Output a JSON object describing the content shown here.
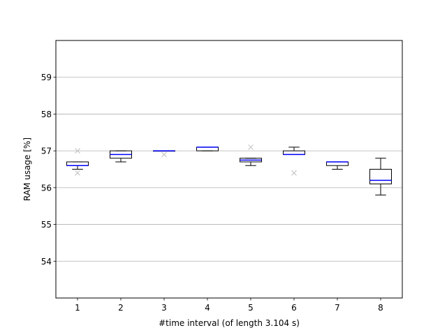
{
  "chart_data": {
    "type": "box",
    "xlabel": "#time interval (of length 3.104 s)",
    "ylabel": "RAM usage [%]",
    "xlim": [
      0.5,
      8.5
    ],
    "ylim": [
      53.0,
      60.0
    ],
    "yticks": [
      54,
      55,
      56,
      57,
      58,
      59
    ],
    "grid": "y-major",
    "median_color": "#0000ff",
    "outlier_color": "#c8c8c8",
    "categories": [
      "1",
      "2",
      "3",
      "4",
      "5",
      "6",
      "7",
      "8"
    ],
    "boxes": [
      {
        "x": 1,
        "whislo": 56.5,
        "q1": 56.6,
        "med": 56.6,
        "q3": 56.7,
        "whishi": 56.7,
        "fliers": [
          57.0,
          56.4
        ]
      },
      {
        "x": 2,
        "whislo": 56.7,
        "q1": 56.8,
        "med": 56.9,
        "q3": 57.0,
        "whishi": 57.0,
        "fliers": []
      },
      {
        "x": 3,
        "whislo": 57.0,
        "q1": 57.0,
        "med": 57.0,
        "q3": 57.0,
        "whishi": 57.0,
        "fliers": [
          56.9
        ]
      },
      {
        "x": 4,
        "whislo": 57.0,
        "q1": 57.0,
        "med": 57.1,
        "q3": 57.1,
        "whishi": 57.1,
        "fliers": []
      },
      {
        "x": 5,
        "whislo": 56.6,
        "q1": 56.7,
        "med": 56.75,
        "q3": 56.8,
        "whishi": 56.8,
        "fliers": [
          57.1
        ]
      },
      {
        "x": 6,
        "whislo": 56.9,
        "q1": 56.9,
        "med": 56.9,
        "q3": 57.0,
        "whishi": 57.1,
        "fliers": [
          56.4
        ]
      },
      {
        "x": 7,
        "whislo": 56.5,
        "q1": 56.6,
        "med": 56.7,
        "q3": 56.7,
        "whishi": 56.7,
        "fliers": []
      },
      {
        "x": 8,
        "whislo": 55.8,
        "q1": 56.1,
        "med": 56.2,
        "q3": 56.5,
        "whishi": 56.8,
        "fliers": []
      }
    ]
  }
}
